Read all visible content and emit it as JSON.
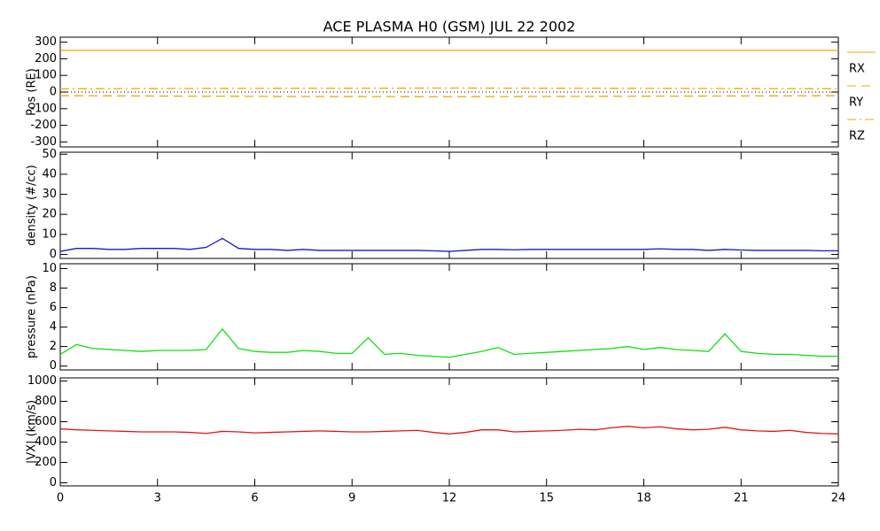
{
  "title": "ACE PLASMA H0 (GSM)   JUL 22 2002",
  "chart_data": [
    {
      "type": "line",
      "ylabel": "Pos (RE)",
      "x": [
        0,
        6,
        12,
        18,
        24
      ],
      "series": [
        {
          "name": "RX",
          "color": "#f0a800",
          "dash": "solid",
          "values": [
            251,
            251,
            251,
            251,
            251
          ]
        },
        {
          "name": "RY",
          "color": "#f0a800",
          "dash": "dashed",
          "values": [
            -22,
            -26,
            -28,
            -25,
            -22
          ]
        },
        {
          "name": "RZ",
          "color": "#f0a800",
          "dash": "dashdot",
          "values": [
            20,
            22,
            24,
            22,
            20
          ]
        }
      ],
      "xlim": [
        0,
        24
      ],
      "ylim": [
        -330,
        330
      ],
      "yticks": [
        -300,
        -200,
        -100,
        0,
        100,
        200,
        300
      ]
    },
    {
      "type": "line",
      "ylabel": "density (#/cc)",
      "x": [
        0,
        0.5,
        1,
        1.5,
        2,
        2.5,
        3,
        3.5,
        4,
        4.5,
        5,
        5.5,
        6,
        6.5,
        7,
        7.5,
        8,
        8.5,
        9,
        9.5,
        10,
        10.5,
        11,
        11.5,
        12,
        12.5,
        13,
        13.5,
        14,
        14.5,
        15,
        15.5,
        16,
        16.5,
        17,
        17.5,
        18,
        18.5,
        19,
        19.5,
        20,
        20.5,
        21,
        21.5,
        22,
        22.5,
        23,
        23.5,
        24
      ],
      "series": [
        {
          "name": "density",
          "color": "#1818c0",
          "values": [
            1.5,
            3,
            3,
            2.5,
            2.5,
            3,
            3,
            3,
            2.5,
            3.5,
            8,
            3,
            2.5,
            2.5,
            2,
            2.5,
            2,
            2,
            2,
            2,
            2,
            2,
            2,
            1.8,
            1.5,
            2,
            2.5,
            2.5,
            2.3,
            2.5,
            2.5,
            2.5,
            2.5,
            2.5,
            2.5,
            2.5,
            2.5,
            2.8,
            2.5,
            2.5,
            2,
            2.5,
            2.2,
            2,
            2,
            2,
            2,
            1.8,
            1.8
          ]
        }
      ],
      "xlim": [
        0,
        24
      ],
      "ylim": [
        -2,
        51
      ],
      "yticks": [
        0,
        10,
        20,
        30,
        40,
        50
      ]
    },
    {
      "type": "line",
      "ylabel": "pressure (nPa)",
      "x": [
        0,
        0.5,
        1,
        1.5,
        2,
        2.5,
        3,
        3.5,
        4,
        4.5,
        5,
        5.5,
        6,
        6.5,
        7,
        7.5,
        8,
        8.5,
        9,
        9.5,
        10,
        10.5,
        11,
        11.5,
        12,
        12.5,
        13,
        13.5,
        14,
        14.5,
        15,
        15.5,
        16,
        16.5,
        17,
        17.5,
        18,
        18.5,
        19,
        19.5,
        20,
        20.5,
        21,
        21.5,
        22,
        22.5,
        23,
        23.5,
        24
      ],
      "series": [
        {
          "name": "pressure",
          "color": "#10e010",
          "values": [
            1.2,
            2.2,
            1.8,
            1.7,
            1.6,
            1.5,
            1.6,
            1.6,
            1.6,
            1.7,
            3.8,
            1.8,
            1.5,
            1.4,
            1.4,
            1.6,
            1.5,
            1.3,
            1.3,
            2.9,
            1.2,
            1.3,
            1.1,
            1.0,
            0.9,
            1.2,
            1.5,
            1.9,
            1.2,
            1.3,
            1.4,
            1.5,
            1.6,
            1.7,
            1.8,
            2.0,
            1.7,
            1.9,
            1.7,
            1.6,
            1.5,
            3.3,
            1.5,
            1.3,
            1.2,
            1.2,
            1.1,
            1.0,
            1.0
          ]
        }
      ],
      "xlim": [
        0,
        24
      ],
      "ylim": [
        -0.4,
        10.5
      ],
      "yticks": [
        0,
        2,
        4,
        6,
        8,
        10
      ]
    },
    {
      "type": "line",
      "ylabel": "|VX| (km/s)",
      "x": [
        0,
        0.5,
        1,
        1.5,
        2,
        2.5,
        3,
        3.5,
        4,
        4.5,
        5,
        5.5,
        6,
        6.5,
        7,
        7.5,
        8,
        8.5,
        9,
        9.5,
        10,
        10.5,
        11,
        11.5,
        12,
        12.5,
        13,
        13.5,
        14,
        14.5,
        15,
        15.5,
        16,
        16.5,
        17,
        17.5,
        18,
        18.5,
        19,
        19.5,
        20,
        20.5,
        21,
        21.5,
        22,
        22.5,
        23,
        23.5,
        24
      ],
      "series": [
        {
          "name": "VX",
          "color": "#e01818",
          "values": [
            530,
            520,
            515,
            510,
            505,
            500,
            500,
            500,
            495,
            485,
            505,
            500,
            490,
            495,
            500,
            505,
            510,
            505,
            500,
            500,
            505,
            510,
            515,
            495,
            480,
            495,
            520,
            520,
            500,
            505,
            510,
            515,
            525,
            520,
            540,
            555,
            540,
            550,
            530,
            520,
            525,
            545,
            520,
            510,
            505,
            515,
            495,
            485,
            480
          ]
        }
      ],
      "xlim": [
        0,
        24
      ],
      "ylim": [
        -30,
        1030
      ],
      "yticks": [
        0,
        200,
        400,
        600,
        800,
        1000
      ],
      "xticks": [
        0,
        3,
        6,
        9,
        12,
        15,
        18,
        21,
        24
      ]
    }
  ]
}
